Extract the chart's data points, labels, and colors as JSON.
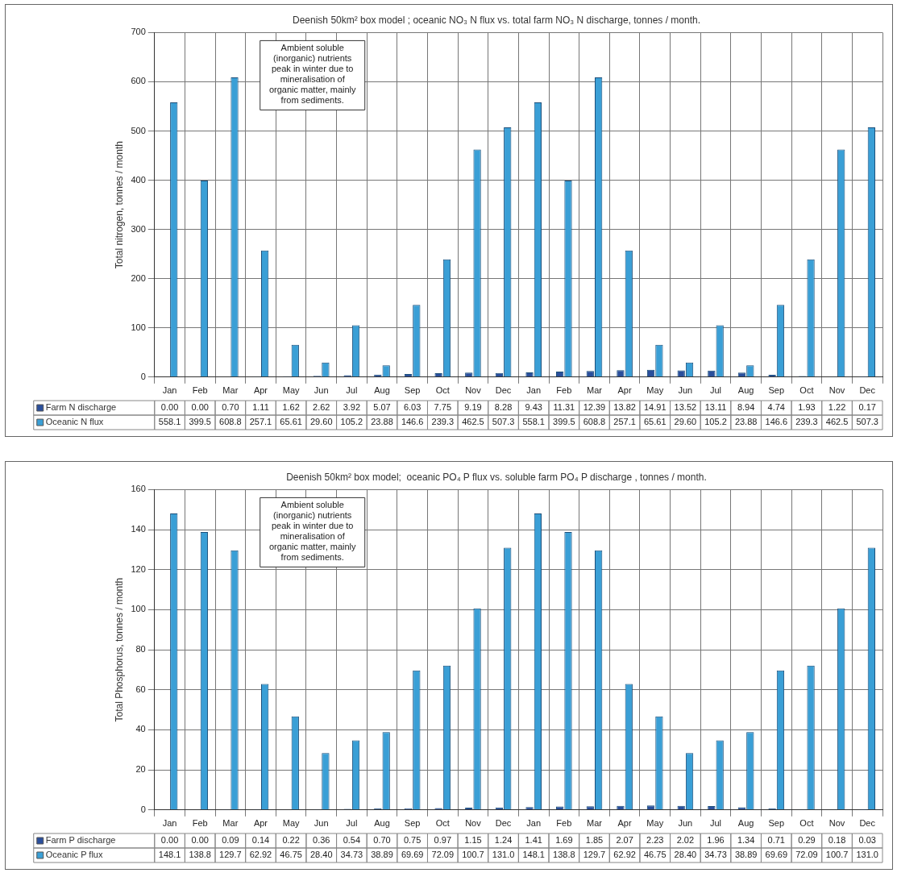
{
  "chart_data": [
    {
      "type": "bar",
      "title": "Deenish 50km² box model ; oceanic NO₃ N flux vs. total farm NO₃ N discharge, tonnes / month.",
      "ylabel": "Total nitrogen, tonnes / month",
      "annotations": [
        "Ambient soluble (inorganic) nutrients peak in winter due to mineralisation of organic matter, mainly from sediments."
      ],
      "categories": [
        "Jan",
        "Feb",
        "Mar",
        "Apr",
        "May",
        "Jun",
        "Jul",
        "Aug",
        "Sep",
        "Oct",
        "Nov",
        "Dec",
        "Jan",
        "Feb",
        "Mar",
        "Apr",
        "May",
        "Jun",
        "Jul",
        "Aug",
        "Sep",
        "Oct",
        "Nov",
        "Dec"
      ],
      "series": [
        {
          "name": "Farm N discharge",
          "color": "#2a4f9c",
          "values": [
            0,
            0,
            0.7,
            1.11,
            1.62,
            2.62,
            3.92,
            5.07,
            6.03,
            7.75,
            9.19,
            8.28,
            9.43,
            11.31,
            12.39,
            13.82,
            14.91,
            13.52,
            13.11,
            8.94,
            4.74,
            1.93,
            1.22,
            0.17
          ],
          "value_labels": [
            "0.00",
            "0.00",
            "0.70",
            "1.11",
            "1.62",
            "2.62",
            "3.92",
            "5.07",
            "6.03",
            "7.75",
            "9.19",
            "8.28",
            "9.43",
            "11.31",
            "12.39",
            "13.82",
            "14.91",
            "13.52",
            "13.11",
            "8.94",
            "4.74",
            "1.93",
            "1.22",
            "0.17"
          ]
        },
        {
          "name": "Oceanic N flux",
          "color": "#3a9fd6",
          "values": [
            558.1,
            399.5,
            608.8,
            257.1,
            65.61,
            29.6,
            105.2,
            23.88,
            146.6,
            239.3,
            462.5,
            507.3,
            558.1,
            399.5,
            608.8,
            257.1,
            65.61,
            29.6,
            105.2,
            23.88,
            146.6,
            239.3,
            462.5,
            507.3
          ],
          "value_labels": [
            "558.1",
            "399.5",
            "608.8",
            "257.1",
            "65.61",
            "29.60",
            "105.2",
            "23.88",
            "146.6",
            "239.3",
            "462.5",
            "507.3",
            "558.1",
            "399.5",
            "608.8",
            "257.1",
            "65.61",
            "29.60",
            "105.2",
            "23.88",
            "146.6",
            "239.3",
            "462.5",
            "507.3"
          ]
        }
      ],
      "ylim": [
        0,
        700
      ],
      "yticks": [
        0,
        100,
        200,
        300,
        400,
        500,
        600,
        700
      ],
      "grid": true,
      "legend": "bottom left"
    },
    {
      "type": "bar",
      "title": "Deenish 50km² box model;  oceanic PO₄ P flux vs. soluble farm PO₄ P discharge , tonnes / month.",
      "ylabel": "Total Phosphorus, tonnes / month",
      "annotations": [
        "Ambient soluble (inorganic) nutrients peak in winter due to mineralisation of organic matter, mainly from sediments."
      ],
      "categories": [
        "Jan",
        "Feb",
        "Mar",
        "Apr",
        "May",
        "Jun",
        "Jul",
        "Aug",
        "Sep",
        "Oct",
        "Nov",
        "Dec",
        "Jan",
        "Feb",
        "Mar",
        "Apr",
        "May",
        "Jun",
        "Jul",
        "Aug",
        "Sep",
        "Oct",
        "Nov",
        "Dec"
      ],
      "series": [
        {
          "name": "Farm P discharge",
          "color": "#2a4f9c",
          "values": [
            0,
            0,
            0.09,
            0.14,
            0.22,
            0.36,
            0.54,
            0.7,
            0.75,
            0.97,
            1.15,
            1.24,
            1.41,
            1.69,
            1.85,
            2.07,
            2.23,
            2.02,
            1.96,
            1.34,
            0.71,
            0.29,
            0.18,
            0.03
          ],
          "value_labels": [
            "0.00",
            "0.00",
            "0.09",
            "0.14",
            "0.22",
            "0.36",
            "0.54",
            "0.70",
            "0.75",
            "0.97",
            "1.15",
            "1.24",
            "1.41",
            "1.69",
            "1.85",
            "2.07",
            "2.23",
            "2.02",
            "1.96",
            "1.34",
            "0.71",
            "0.29",
            "0.18",
            "0.03"
          ]
        },
        {
          "name": "Oceanic P flux",
          "color": "#3a9fd6",
          "values": [
            148.1,
            138.8,
            129.7,
            62.92,
            46.75,
            28.4,
            34.73,
            38.89,
            69.69,
            72.09,
            100.7,
            131.0,
            148.1,
            138.8,
            129.7,
            62.92,
            46.75,
            28.4,
            34.73,
            38.89,
            69.69,
            72.09,
            100.7,
            131.0
          ],
          "value_labels": [
            "148.1",
            "138.8",
            "129.7",
            "62.92",
            "46.75",
            "28.40",
            "34.73",
            "38.89",
            "69.69",
            "72.09",
            "100.7",
            "131.0",
            "148.1",
            "138.8",
            "129.7",
            "62.92",
            "46.75",
            "28.40",
            "34.73",
            "38.89",
            "69.69",
            "72.09",
            "100.7",
            "131.0"
          ]
        }
      ],
      "ylim": [
        0,
        160
      ],
      "yticks": [
        0,
        20,
        40,
        60,
        80,
        100,
        120,
        140,
        160
      ],
      "grid": true,
      "legend": "bottom left"
    }
  ]
}
